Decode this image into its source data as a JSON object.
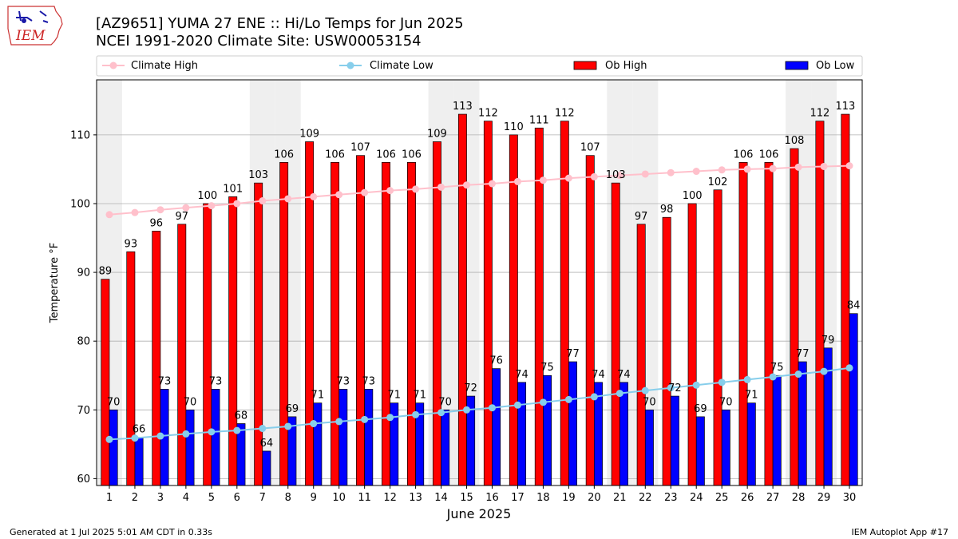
{
  "header": {
    "title_line1": "[AZ9651] YUMA 27 ENE :: Hi/Lo Temps for Jun 2025",
    "title_line2": "NCEI 1991-2020 Climate Site: USW00053154",
    "logo_text": "IEM"
  },
  "footer": {
    "left": "Generated at 1 Jul 2025 5:01 AM CDT in 0.33s",
    "right": "IEM Autoplot App #17"
  },
  "colors": {
    "ob_high": "#ff0000",
    "ob_low": "#0000ff",
    "climate_high": "#ffc0cb",
    "climate_low": "#87ceeb",
    "weekend_shade": "#efefef",
    "grid": "#b0b0b0"
  },
  "chart_data": {
    "type": "bar",
    "title": "[AZ9651] YUMA 27 ENE :: Hi/Lo Temps for Jun 2025",
    "subtitle": "NCEI 1991-2020 Climate Site: USW00053154",
    "xlabel": "June 2025",
    "ylabel": "Temperature °F",
    "ylim": [
      59,
      118
    ],
    "yticks": [
      60,
      70,
      80,
      90,
      100,
      110
    ],
    "categories": [
      "1",
      "2",
      "3",
      "4",
      "5",
      "6",
      "7",
      "8",
      "9",
      "10",
      "11",
      "12",
      "13",
      "14",
      "15",
      "16",
      "17",
      "18",
      "19",
      "20",
      "21",
      "22",
      "23",
      "24",
      "25",
      "26",
      "27",
      "28",
      "29",
      "30"
    ],
    "shaded_days": [
      1,
      7,
      8,
      14,
      15,
      21,
      22,
      28,
      29
    ],
    "grid": true,
    "legend_position": "top",
    "series": [
      {
        "name": "Ob High",
        "kind": "bar",
        "values": [
          89,
          93,
          96,
          97,
          100,
          101,
          103,
          106,
          109,
          106,
          107,
          106,
          106,
          109,
          113,
          112,
          110,
          111,
          112,
          107,
          103,
          97,
          98,
          100,
          102,
          106,
          106,
          108,
          112,
          113
        ]
      },
      {
        "name": "Ob Low",
        "kind": "bar",
        "values": [
          70,
          66,
          73,
          70,
          73,
          68,
          64,
          69,
          71,
          73,
          73,
          71,
          71,
          70,
          72,
          76,
          74,
          75,
          77,
          74,
          74,
          70,
          72,
          69,
          70,
          71,
          75,
          77,
          79,
          84
        ]
      },
      {
        "name": "Climate High",
        "kind": "line",
        "values": [
          98.4,
          98.7,
          99.1,
          99.4,
          99.7,
          100.0,
          100.4,
          100.7,
          101.0,
          101.3,
          101.6,
          101.9,
          102.1,
          102.4,
          102.7,
          102.9,
          103.2,
          103.4,
          103.7,
          103.9,
          104.1,
          104.3,
          104.5,
          104.7,
          104.9,
          105.0,
          105.1,
          105.3,
          105.4,
          105.5
        ]
      },
      {
        "name": "Climate Low",
        "kind": "line",
        "values": [
          65.7,
          65.9,
          66.2,
          66.5,
          66.8,
          67.0,
          67.3,
          67.6,
          68.0,
          68.3,
          68.6,
          68.9,
          69.3,
          69.6,
          70.0,
          70.3,
          70.7,
          71.1,
          71.5,
          71.9,
          72.4,
          72.8,
          73.2,
          73.6,
          74.0,
          74.4,
          74.8,
          75.2,
          75.6,
          76.1
        ]
      }
    ]
  }
}
